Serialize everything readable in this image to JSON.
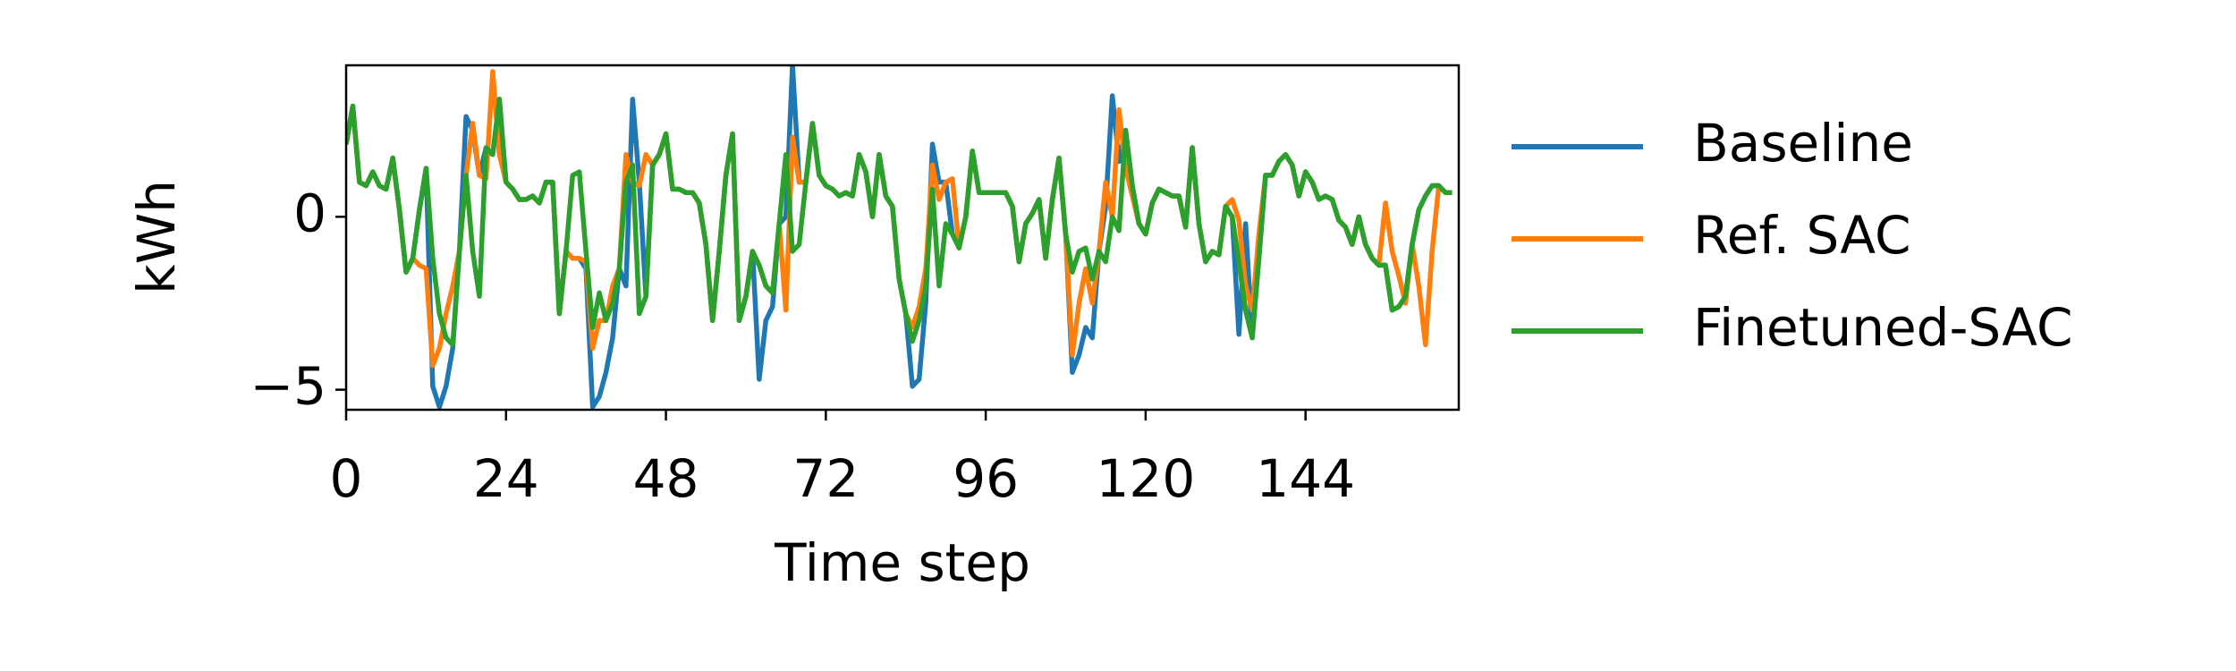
{
  "chart_data": {
    "type": "line",
    "xlabel": "Time step",
    "ylabel": "kWh",
    "x": [
      0,
      1,
      2,
      3,
      4,
      5,
      6,
      7,
      8,
      9,
      10,
      11,
      12,
      13,
      14,
      15,
      16,
      17,
      18,
      19,
      20,
      21,
      22,
      23,
      24,
      25,
      26,
      27,
      28,
      29,
      30,
      31,
      32,
      33,
      34,
      35,
      36,
      37,
      38,
      39,
      40,
      41,
      42,
      43,
      44,
      45,
      46,
      47,
      48,
      49,
      50,
      51,
      52,
      53,
      54,
      55,
      56,
      57,
      58,
      59,
      60,
      61,
      62,
      63,
      64,
      65,
      66,
      67,
      68,
      69,
      70,
      71,
      72,
      73,
      74,
      75,
      76,
      77,
      78,
      79,
      80,
      81,
      82,
      83,
      84,
      85,
      86,
      87,
      88,
      89,
      90,
      91,
      92,
      93,
      94,
      95,
      96,
      97,
      98,
      99,
      100,
      101,
      102,
      103,
      104,
      105,
      106,
      107,
      108,
      109,
      110,
      111,
      112,
      113,
      114,
      115,
      116,
      117,
      118,
      119,
      120,
      121,
      122,
      123,
      124,
      125,
      126,
      127,
      128,
      129,
      130,
      131,
      132,
      133,
      134,
      135,
      136,
      137,
      138,
      139,
      140,
      141,
      142,
      143,
      144,
      145,
      146,
      147,
      148,
      149,
      150,
      151,
      152,
      153,
      154,
      155,
      156,
      157,
      158,
      159,
      160,
      161,
      162,
      163,
      164,
      165,
      166
    ],
    "series": [
      {
        "name": "Baseline",
        "color": "#1f77b4",
        "values": [
          2.1,
          3.2,
          1.0,
          0.9,
          1.3,
          0.9,
          0.8,
          1.7,
          0.2,
          -1.6,
          -1.2,
          0.2,
          1.4,
          -4.9,
          -5.5,
          -4.9,
          -3.8,
          -1.0,
          2.9,
          2.5,
          1.2,
          2.0,
          1.8,
          3.4,
          1.0,
          0.8,
          0.5,
          0.5,
          0.6,
          0.4,
          1.0,
          1.0,
          -2.8,
          -1.0,
          -1.2,
          -1.2,
          -1.5,
          -5.5,
          -5.2,
          -4.5,
          -3.5,
          -1.5,
          -2.0,
          3.4,
          1.0,
          -2.3,
          1.5,
          1.8,
          2.4,
          0.8,
          0.8,
          0.7,
          0.7,
          0.4,
          -0.8,
          -3.0,
          -1.0,
          1.2,
          2.4,
          -3.0,
          -2.3,
          -1.0,
          -4.7,
          -3.0,
          -2.6,
          -0.2,
          0.0,
          4.4,
          1.0,
          1.0,
          2.7,
          1.2,
          0.9,
          0.8,
          0.6,
          0.7,
          0.6,
          1.8,
          1.3,
          0.0,
          1.8,
          0.6,
          0.3,
          -1.8,
          -2.8,
          -4.9,
          -4.7,
          -2.5,
          2.1,
          1.0,
          1.0,
          -0.5,
          -0.9,
          0.0,
          1.9,
          0.7,
          0.7,
          0.7,
          0.7,
          0.7,
          0.3,
          -1.3,
          -0.2,
          0.1,
          0.5,
          -1.2,
          0.5,
          1.7,
          -0.5,
          -4.5,
          -4.0,
          -3.2,
          -3.5,
          -1.0,
          0.3,
          3.5,
          1.6,
          2.5,
          0.9,
          -0.2,
          -0.5,
          0.4,
          0.8,
          0.7,
          0.6,
          0.6,
          -0.3,
          2.0,
          -0.2,
          -1.3,
          -1.0,
          -1.1,
          0.3,
          0.0,
          -3.4,
          -0.2,
          -3.5,
          -1.2,
          1.2,
          1.2,
          1.6,
          1.8,
          1.5,
          0.6,
          1.3,
          1.0,
          0.5,
          0.6,
          0.5,
          -0.1,
          -0.3,
          -0.8,
          0.0,
          -0.8,
          -1.2,
          -1.4,
          -1.4,
          -2.7,
          -2.6,
          -2.3,
          -0.8,
          0.2,
          0.6,
          0.9,
          0.9,
          0.7,
          0.7
        ]
      },
      {
        "name": "Ref. SAC",
        "color": "#ff7f0e",
        "values": [
          2.1,
          3.2,
          1.0,
          0.9,
          1.3,
          0.9,
          0.8,
          1.7,
          0.2,
          -1.6,
          -1.2,
          -1.4,
          -1.5,
          -4.3,
          -3.8,
          -2.8,
          -2.0,
          -1.0,
          1.2,
          2.7,
          1.2,
          1.1,
          4.2,
          1.8,
          1.0,
          0.8,
          0.5,
          0.5,
          0.6,
          0.4,
          1.0,
          1.0,
          -2.8,
          -1.0,
          -1.2,
          -1.2,
          -1.3,
          -3.8,
          -3.0,
          -3.0,
          -2.0,
          -1.5,
          1.8,
          1.0,
          0.9,
          1.8,
          1.5,
          1.8,
          2.4,
          0.8,
          0.8,
          0.7,
          0.7,
          0.4,
          -0.8,
          -3.0,
          -1.0,
          1.2,
          2.4,
          -3.0,
          -2.3,
          -1.0,
          -1.4,
          -2.0,
          -2.2,
          -0.2,
          -2.7,
          2.3,
          1.0,
          1.0,
          2.7,
          1.2,
          0.9,
          0.8,
          0.6,
          0.7,
          0.6,
          1.8,
          1.3,
          0.0,
          1.8,
          0.6,
          0.3,
          -1.8,
          -2.8,
          -3.2,
          -2.6,
          -1.5,
          1.5,
          0.5,
          1.0,
          1.1,
          -0.9,
          0.0,
          1.9,
          0.7,
          0.7,
          0.7,
          0.7,
          0.7,
          0.3,
          -1.3,
          -0.2,
          0.1,
          0.5,
          -1.2,
          0.5,
          1.7,
          -0.5,
          -4.0,
          -2.5,
          -1.5,
          -2.5,
          -1.0,
          1.0,
          0.0,
          3.1,
          1.4,
          0.6,
          -0.2,
          -0.5,
          0.4,
          0.8,
          0.7,
          0.6,
          0.6,
          -0.3,
          2.0,
          -0.2,
          -1.3,
          -1.0,
          -1.1,
          0.3,
          0.5,
          -0.1,
          -2.0,
          -2.7,
          -0.5,
          1.2,
          1.2,
          1.6,
          1.8,
          1.5,
          0.6,
          1.3,
          1.0,
          0.5,
          0.6,
          0.5,
          -0.1,
          -0.3,
          -0.8,
          0.0,
          -0.8,
          -1.2,
          -1.4,
          0.4,
          -1.0,
          -1.7,
          -2.5,
          -0.8,
          -2.0,
          -3.7,
          -1.0,
          0.9,
          0.7,
          0.7
        ]
      },
      {
        "name": "Finetuned-SAC",
        "color": "#2ca02c",
        "values": [
          2.1,
          3.2,
          1.0,
          0.9,
          1.3,
          0.9,
          0.8,
          1.7,
          0.2,
          -1.6,
          -1.2,
          0.2,
          1.4,
          -1.2,
          -2.8,
          -3.5,
          -3.7,
          -1.0,
          1.2,
          -1.0,
          -2.3,
          2.0,
          1.8,
          3.4,
          1.0,
          0.8,
          0.5,
          0.5,
          0.6,
          0.4,
          1.0,
          1.0,
          -2.8,
          -1.0,
          1.2,
          1.3,
          -1.0,
          -3.2,
          -2.2,
          -3.0,
          -2.5,
          -1.5,
          1.0,
          1.5,
          -2.8,
          -2.3,
          1.5,
          1.8,
          2.4,
          0.8,
          0.8,
          0.7,
          0.7,
          0.4,
          -0.8,
          -3.0,
          -1.0,
          1.2,
          2.4,
          -3.0,
          -2.3,
          -1.0,
          -1.4,
          -2.0,
          -2.2,
          -0.2,
          1.8,
          -1.0,
          -0.8,
          1.0,
          2.7,
          1.2,
          0.9,
          0.8,
          0.6,
          0.7,
          0.6,
          1.8,
          1.3,
          0.0,
          1.8,
          0.6,
          0.3,
          -1.8,
          -2.8,
          -3.6,
          -3.0,
          -2.0,
          0.8,
          -2.0,
          -0.2,
          -0.5,
          -0.9,
          0.0,
          1.9,
          0.7,
          0.7,
          0.7,
          0.7,
          0.7,
          0.3,
          -1.3,
          -0.2,
          0.1,
          0.5,
          -1.2,
          0.5,
          1.7,
          -0.5,
          -1.6,
          -1.0,
          -0.9,
          -1.8,
          -1.0,
          -1.3,
          0.0,
          -0.4,
          2.5,
          0.9,
          -0.2,
          -0.5,
          0.4,
          0.8,
          0.7,
          0.6,
          0.6,
          -0.3,
          2.0,
          -0.2,
          -1.3,
          -1.0,
          -1.1,
          0.3,
          0.0,
          -1.3,
          -2.7,
          -3.5,
          -1.2,
          1.2,
          1.2,
          1.6,
          1.8,
          1.5,
          0.6,
          1.3,
          1.0,
          0.5,
          0.6,
          0.5,
          -0.1,
          -0.3,
          -0.8,
          0.0,
          -0.8,
          -1.2,
          -1.4,
          -1.4,
          -2.7,
          -2.6,
          -2.3,
          -0.8,
          0.2,
          0.6,
          0.9,
          0.9,
          0.7,
          0.7
        ]
      }
    ],
    "xlim": [
      0,
      167
    ],
    "xticks": [
      0,
      24,
      48,
      72,
      96,
      120,
      144
    ],
    "ylim": [
      -5.58,
      4.38
    ],
    "yticks": [
      {
        "value": -5,
        "label": "−5"
      },
      0
    ],
    "grid": false,
    "legend": "outside right"
  }
}
